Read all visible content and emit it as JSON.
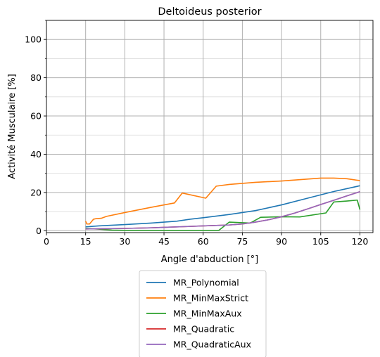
{
  "chart_data": {
    "type": "line",
    "title": "Deltoideus posterior",
    "xlabel": "Angle d'abduction [°]",
    "ylabel": "Activité Musculaire [%]",
    "xlim": [
      0,
      125
    ],
    "ylim": [
      -1,
      110
    ],
    "xticks": [
      0,
      15,
      30,
      45,
      60,
      75,
      90,
      105,
      120
    ],
    "yticks": [
      0,
      20,
      40,
      60,
      80,
      100
    ],
    "yticks_minor": [
      10,
      30,
      50,
      70,
      90,
      110
    ],
    "grid": true,
    "legend_position": "below",
    "series": [
      {
        "name": "MR_Polynomial",
        "color": "#1f77b4",
        "x": [
          15,
          20,
          30,
          40,
          50,
          55,
          60,
          70,
          80,
          90,
          100,
          110,
          120
        ],
        "y": [
          2,
          2.5,
          3.2,
          4,
          5,
          6,
          6.8,
          8.5,
          10.5,
          13.5,
          17,
          20.5,
          23.5
        ]
      },
      {
        "name": "MR_MinMaxStrict",
        "color": "#ff7f0e",
        "x": [
          15,
          15.5,
          16.5,
          18,
          19,
          21,
          23,
          30,
          40,
          49,
          52,
          61,
          65,
          70,
          80,
          90,
          100,
          105,
          110,
          115,
          120
        ],
        "y": [
          5,
          3.5,
          3.5,
          6,
          6.3,
          6.5,
          7.5,
          9.5,
          12.2,
          14.5,
          19.7,
          17,
          23.3,
          24.2,
          25.3,
          26,
          27,
          27.5,
          27.5,
          27.2,
          26.2
        ]
      },
      {
        "name": "MR_MinMaxAux",
        "color": "#2ca02c",
        "x": [
          15,
          20,
          25,
          30,
          40,
          50,
          60,
          66,
          70,
          78,
          82,
          90,
          97,
          107,
          110,
          115,
          119,
          120
        ],
        "y": [
          1.2,
          0.8,
          0.3,
          0.2,
          0.2,
          0.2,
          0.2,
          0.2,
          4.5,
          4,
          7,
          7.3,
          7.2,
          9.3,
          15,
          15.5,
          16,
          11
        ]
      },
      {
        "name": "MR_Quadratic",
        "color": "#d62728",
        "x": [
          15,
          20,
          30,
          40,
          50,
          60,
          70,
          75,
          80,
          85,
          90,
          95,
          100,
          105,
          110,
          115,
          120
        ],
        "y": [
          0.9,
          1,
          1.2,
          1.5,
          2,
          2.5,
          3,
          3.5,
          4.5,
          5.7,
          7.3,
          9.2,
          11.4,
          13.7,
          15.9,
          18.2,
          20.4
        ]
      },
      {
        "name": "MR_QuadraticAux",
        "color": "#9467bd",
        "x": [
          15,
          20,
          30,
          40,
          50,
          60,
          70,
          75,
          80,
          85,
          90,
          95,
          100,
          105,
          110,
          115,
          120
        ],
        "y": [
          0.9,
          1,
          1.2,
          1.5,
          2,
          2.5,
          3,
          3.5,
          4.5,
          5.7,
          7.3,
          9.2,
          11.4,
          13.7,
          15.9,
          18.2,
          20.4
        ]
      }
    ]
  }
}
